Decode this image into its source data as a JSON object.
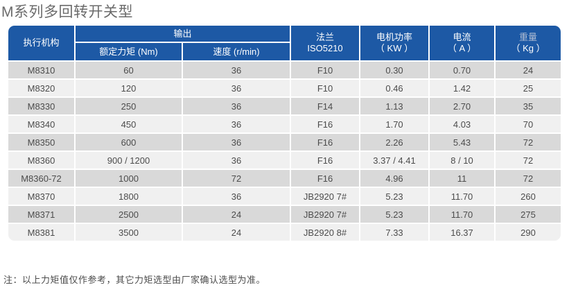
{
  "page": {
    "title": "M系列多回转开关型",
    "note": "注：以上力矩值仅作参考，其它力矩选型由厂家确认选型为准。"
  },
  "table": {
    "header": {
      "actuator": "执行机构",
      "output_group": "输出",
      "rated_torque": "额定力矩 (Nm)",
      "speed": "速度 (r/min)",
      "flange_line1": "法兰",
      "flange_line2": "ISO5210",
      "motor_power_line1": "电机功率",
      "motor_power_line2": "（ KW ）",
      "current_line1": "电流",
      "current_line2": "（ A ）",
      "weight_line1": "重量",
      "weight_line2": "（ Kg ）"
    },
    "rows": [
      {
        "model": "M8310",
        "torque": "60",
        "speed": "36",
        "flange": "F10",
        "power": "0.30",
        "current": "0.70",
        "weight": "24"
      },
      {
        "model": "M8320",
        "torque": "120",
        "speed": "36",
        "flange": "F10",
        "power": "0.46",
        "current": "1.42",
        "weight": "25"
      },
      {
        "model": "M8330",
        "torque": "250",
        "speed": "36",
        "flange": "F14",
        "power": "1.13",
        "current": "2.70",
        "weight": "35"
      },
      {
        "model": "M8340",
        "torque": "450",
        "speed": "36",
        "flange": "F16",
        "power": "1.70",
        "current": "4.03",
        "weight": "70"
      },
      {
        "model": "M8350",
        "torque": "600",
        "speed": "36",
        "flange": "F16",
        "power": "2.26",
        "current": "5.43",
        "weight": "72"
      },
      {
        "model": "M8360",
        "torque": "900 / 1200",
        "speed": "36",
        "flange": "F16",
        "power": "3.37 / 4.41",
        "current": "8 / 10",
        "weight": "72"
      },
      {
        "model": "M8360-72",
        "torque": "1000",
        "speed": "72",
        "flange": "F16",
        "power": "4.96",
        "current": "11",
        "weight": "72"
      },
      {
        "model": "M8370",
        "torque": "1800",
        "speed": "36",
        "flange": "JB2920 7#",
        "power": "5.23",
        "current": "11.70",
        "weight": "260"
      },
      {
        "model": "M8371",
        "torque": "2500",
        "speed": "24",
        "flange": "JB2920 7#",
        "power": "5.23",
        "current": "11.70",
        "weight": "275"
      },
      {
        "model": "M8381",
        "torque": "3500",
        "speed": "24",
        "flange": "JB2920 8#",
        "power": "7.33",
        "current": "16.37",
        "weight": "290"
      }
    ]
  },
  "colors": {
    "header_blue": "#1d59a5",
    "row_dark": "#d9d9d9",
    "row_light": "#f0f0f0",
    "cell_text": "#4c4c4c",
    "title_gray": "#6b6b6b"
  }
}
